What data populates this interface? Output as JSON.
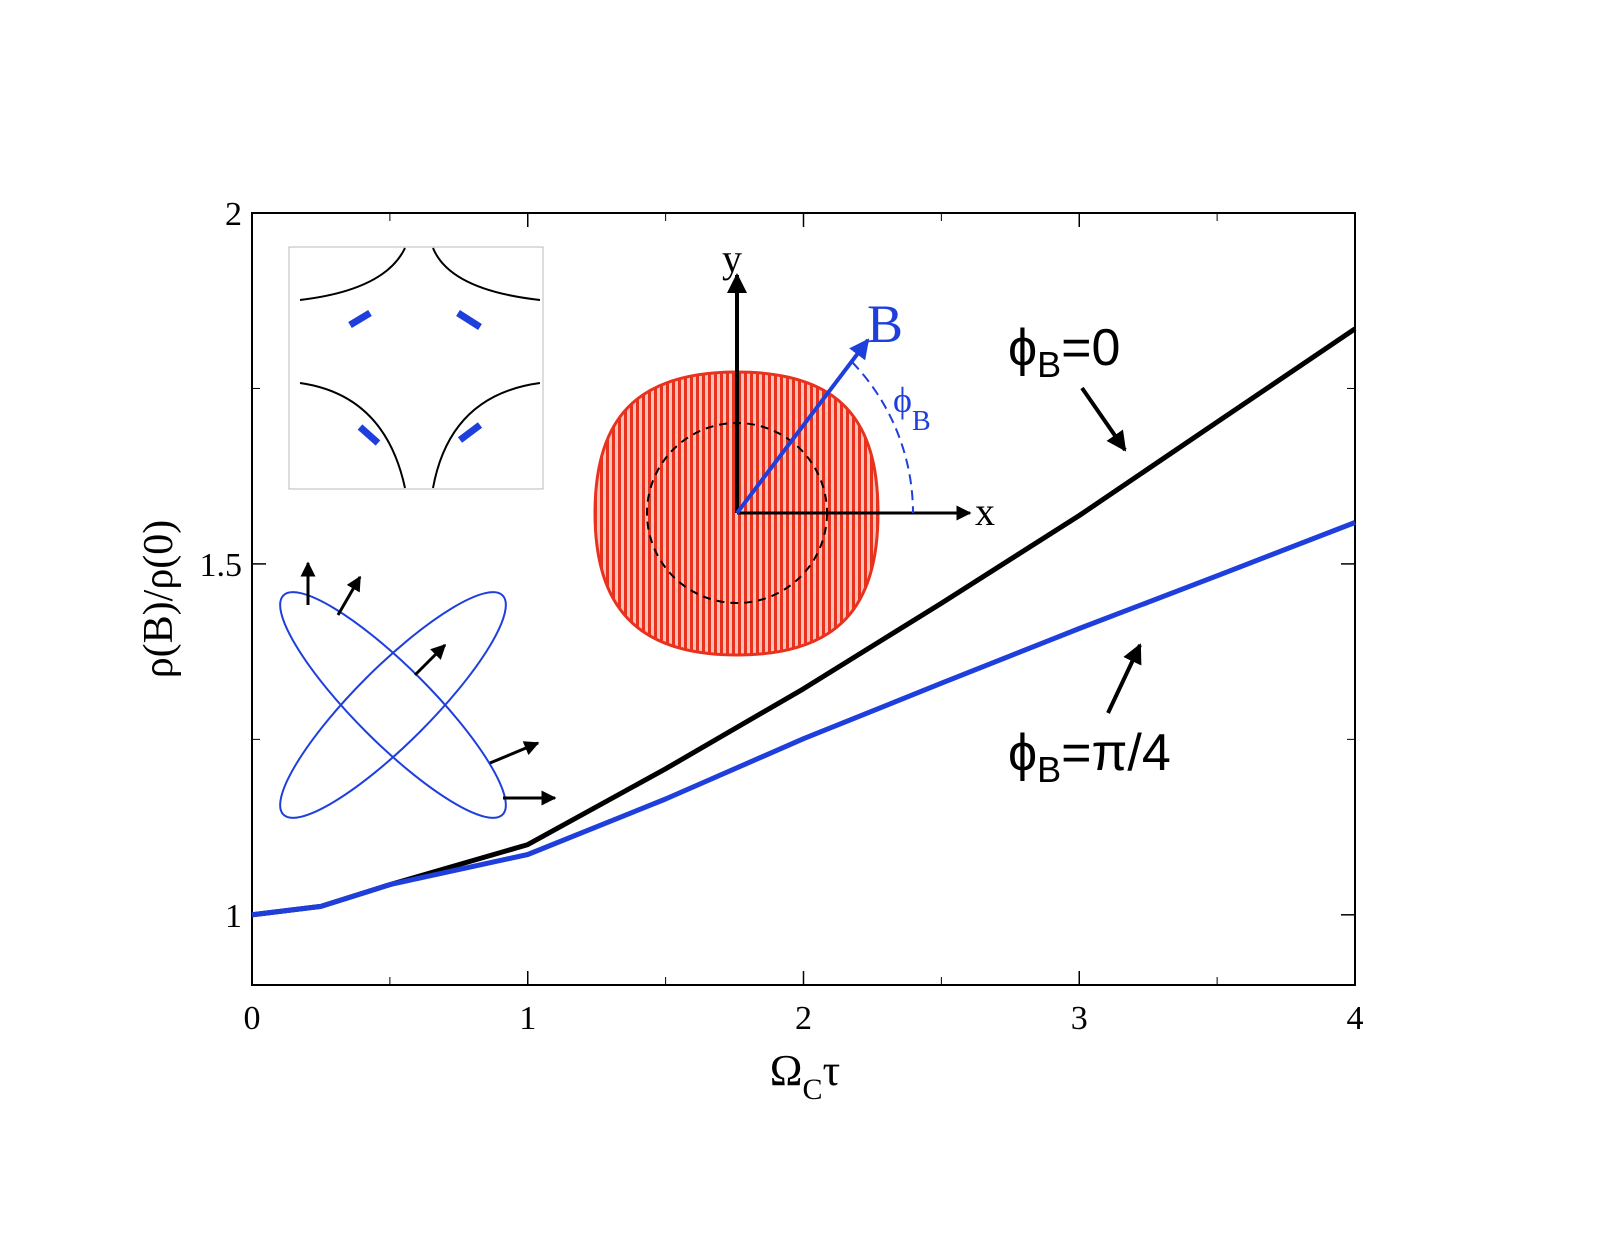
{
  "chart_data": {
    "type": "line",
    "xlabel": {
      "base": "Ω",
      "sub": "C",
      "tail": "τ"
    },
    "ylabel": "ρ(B)/ρ(0)",
    "x": [
      0,
      0.25,
      0.5,
      1,
      1.5,
      2,
      2.5,
      3,
      3.5,
      4
    ],
    "series": [
      {
        "name": "ϕB=0",
        "color": "#000000",
        "values": [
          1.0,
          1.012,
          1.043,
          1.1,
          1.208,
          1.322,
          1.444,
          1.569,
          1.702,
          1.835
        ]
      },
      {
        "name": "ϕB=π/4",
        "color": "#1f3fdd",
        "values": [
          1.0,
          1.012,
          1.043,
          1.086,
          1.165,
          1.251,
          1.33,
          1.408,
          1.483,
          1.559
        ]
      }
    ],
    "xlim": [
      0,
      4
    ],
    "ylim": [
      0.9,
      2
    ],
    "xticks": [
      0,
      1,
      2,
      3,
      4
    ],
    "yticks": [
      1,
      1.5,
      2
    ],
    "xminorticks": [
      0.5,
      1.5,
      2.5,
      3.5
    ],
    "yminorticks": [
      1.25,
      1.75
    ],
    "annotations": [
      {
        "base": "ϕ",
        "sub": "B",
        "tail": "=0"
      },
      {
        "base": "ϕ",
        "sub": "B",
        "tail": "=π/4"
      }
    ],
    "inset": {
      "field": "B",
      "angle": {
        "base": "ϕ",
        "sub": "B"
      },
      "xaxis": "x",
      "yaxis": "y"
    }
  }
}
